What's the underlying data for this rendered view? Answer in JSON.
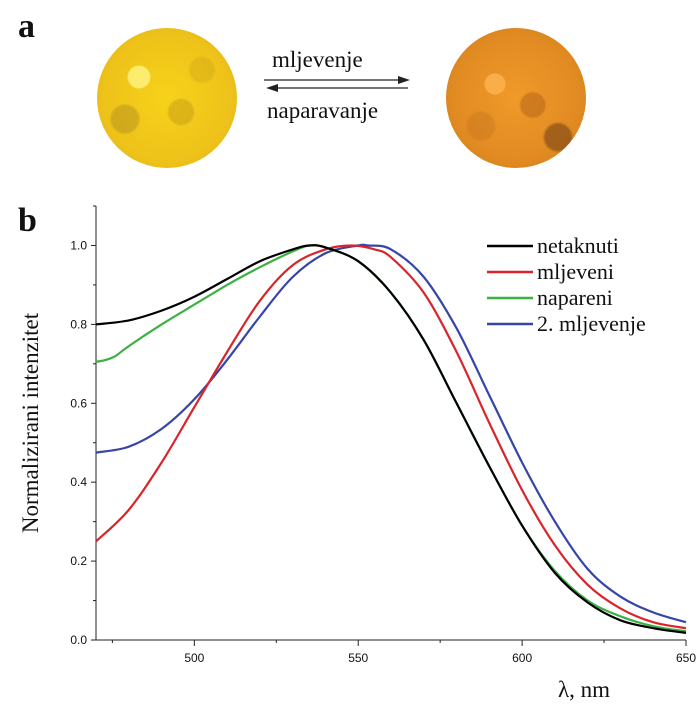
{
  "panel_a": {
    "label": "a",
    "forward_label": "mljevenje",
    "backward_label": "naparavanje",
    "sample_colors": {
      "before": "#f2c81c",
      "after": "#e5902a"
    }
  },
  "panel_b": {
    "label": "b"
  },
  "chart_data": {
    "type": "line",
    "xlabel": "λ, nm",
    "ylabel": "Normalizirani intenzitet",
    "xlim": [
      470,
      650
    ],
    "ylim": [
      0.0,
      1.1
    ],
    "xticks": [
      500,
      550,
      600,
      650
    ],
    "yticks": [
      0.0,
      0.2,
      0.4,
      0.6,
      0.8,
      1.0
    ],
    "xtick_labels": [
      "500",
      "550",
      "600",
      "650"
    ],
    "ytick_labels": [
      "0.0",
      "0.2",
      "0.4",
      "0.6",
      "0.8",
      "1.0"
    ],
    "legend_position": "top-right",
    "grid": false,
    "series": [
      {
        "name": "netaknuti",
        "color": "#000000",
        "x": [
          470,
          480,
          490,
          500,
          510,
          520,
          530,
          535,
          540,
          550,
          560,
          570,
          580,
          590,
          600,
          610,
          620,
          630,
          640,
          650
        ],
        "y": [
          0.8,
          0.81,
          0.835,
          0.87,
          0.915,
          0.96,
          0.99,
          1.0,
          0.995,
          0.96,
          0.88,
          0.76,
          0.6,
          0.44,
          0.29,
          0.17,
          0.095,
          0.05,
          0.03,
          0.018
        ]
      },
      {
        "name": "mljeveni",
        "color": "#d9252a",
        "x": [
          470,
          480,
          490,
          500,
          510,
          520,
          530,
          540,
          548,
          555,
          560,
          570,
          580,
          590,
          600,
          610,
          620,
          630,
          640,
          650
        ],
        "y": [
          0.25,
          0.33,
          0.45,
          0.59,
          0.73,
          0.86,
          0.95,
          0.99,
          1.0,
          0.99,
          0.97,
          0.88,
          0.73,
          0.55,
          0.38,
          0.24,
          0.14,
          0.08,
          0.045,
          0.03
        ]
      },
      {
        "name": "napareni",
        "color": "#3cb043",
        "x": [
          470,
          473,
          476,
          480,
          490,
          500,
          510,
          520,
          530,
          535,
          540,
          550,
          560,
          570,
          580,
          590,
          600,
          610,
          620,
          630,
          640,
          650
        ],
        "y": [
          0.705,
          0.71,
          0.72,
          0.745,
          0.8,
          0.85,
          0.9,
          0.945,
          0.985,
          1.0,
          0.995,
          0.96,
          0.88,
          0.76,
          0.6,
          0.44,
          0.29,
          0.175,
          0.1,
          0.06,
          0.035,
          0.022
        ]
      },
      {
        "name": "2. mljevenje",
        "color": "#3545a8",
        "x": [
          470,
          480,
          490,
          500,
          510,
          520,
          530,
          540,
          550,
          553,
          560,
          570,
          580,
          590,
          600,
          610,
          620,
          630,
          640,
          650
        ],
        "y": [
          0.475,
          0.49,
          0.535,
          0.61,
          0.71,
          0.82,
          0.92,
          0.98,
          1.0,
          1.0,
          0.99,
          0.92,
          0.79,
          0.62,
          0.45,
          0.3,
          0.18,
          0.11,
          0.07,
          0.045
        ]
      }
    ]
  }
}
